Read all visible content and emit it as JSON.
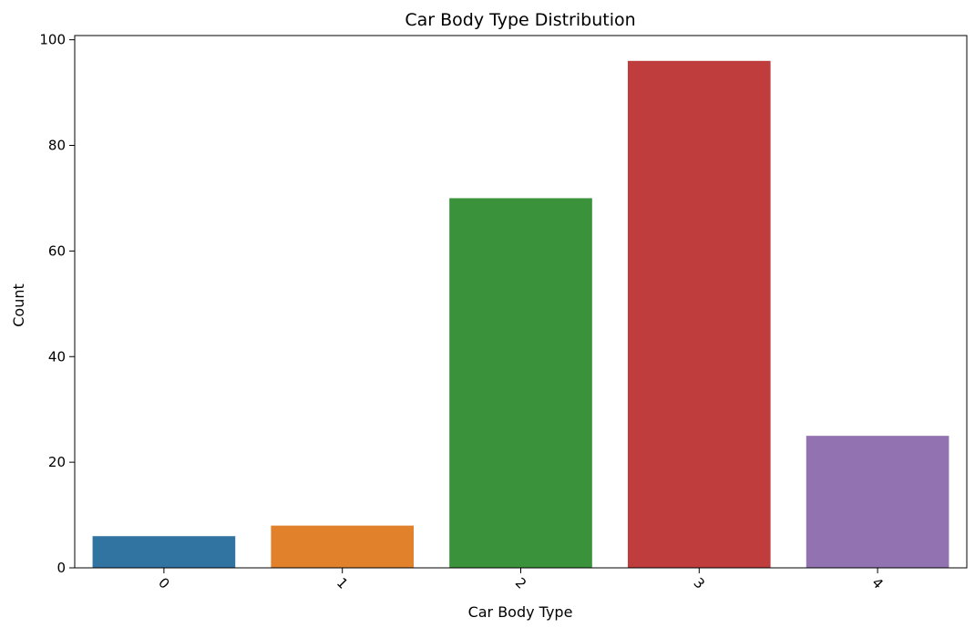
{
  "chart_data": {
    "type": "bar",
    "title": "Car Body Type Distribution",
    "xlabel": "Car Body Type",
    "ylabel": "Count",
    "categories": [
      "0",
      "1",
      "2",
      "3",
      "4"
    ],
    "values": [
      6,
      8,
      70,
      96,
      25
    ],
    "colors": [
      "#3274a1",
      "#e1812c",
      "#3a923a",
      "#c03d3e",
      "#9372b2"
    ],
    "ylim": [
      0,
      100.8
    ],
    "yticks": [
      0,
      20,
      40,
      60,
      80,
      100
    ],
    "ytick_labels": [
      "0",
      "20",
      "40",
      "60",
      "80",
      "100"
    ],
    "xtick_rotation": 45,
    "grid": false,
    "legend": "none"
  }
}
